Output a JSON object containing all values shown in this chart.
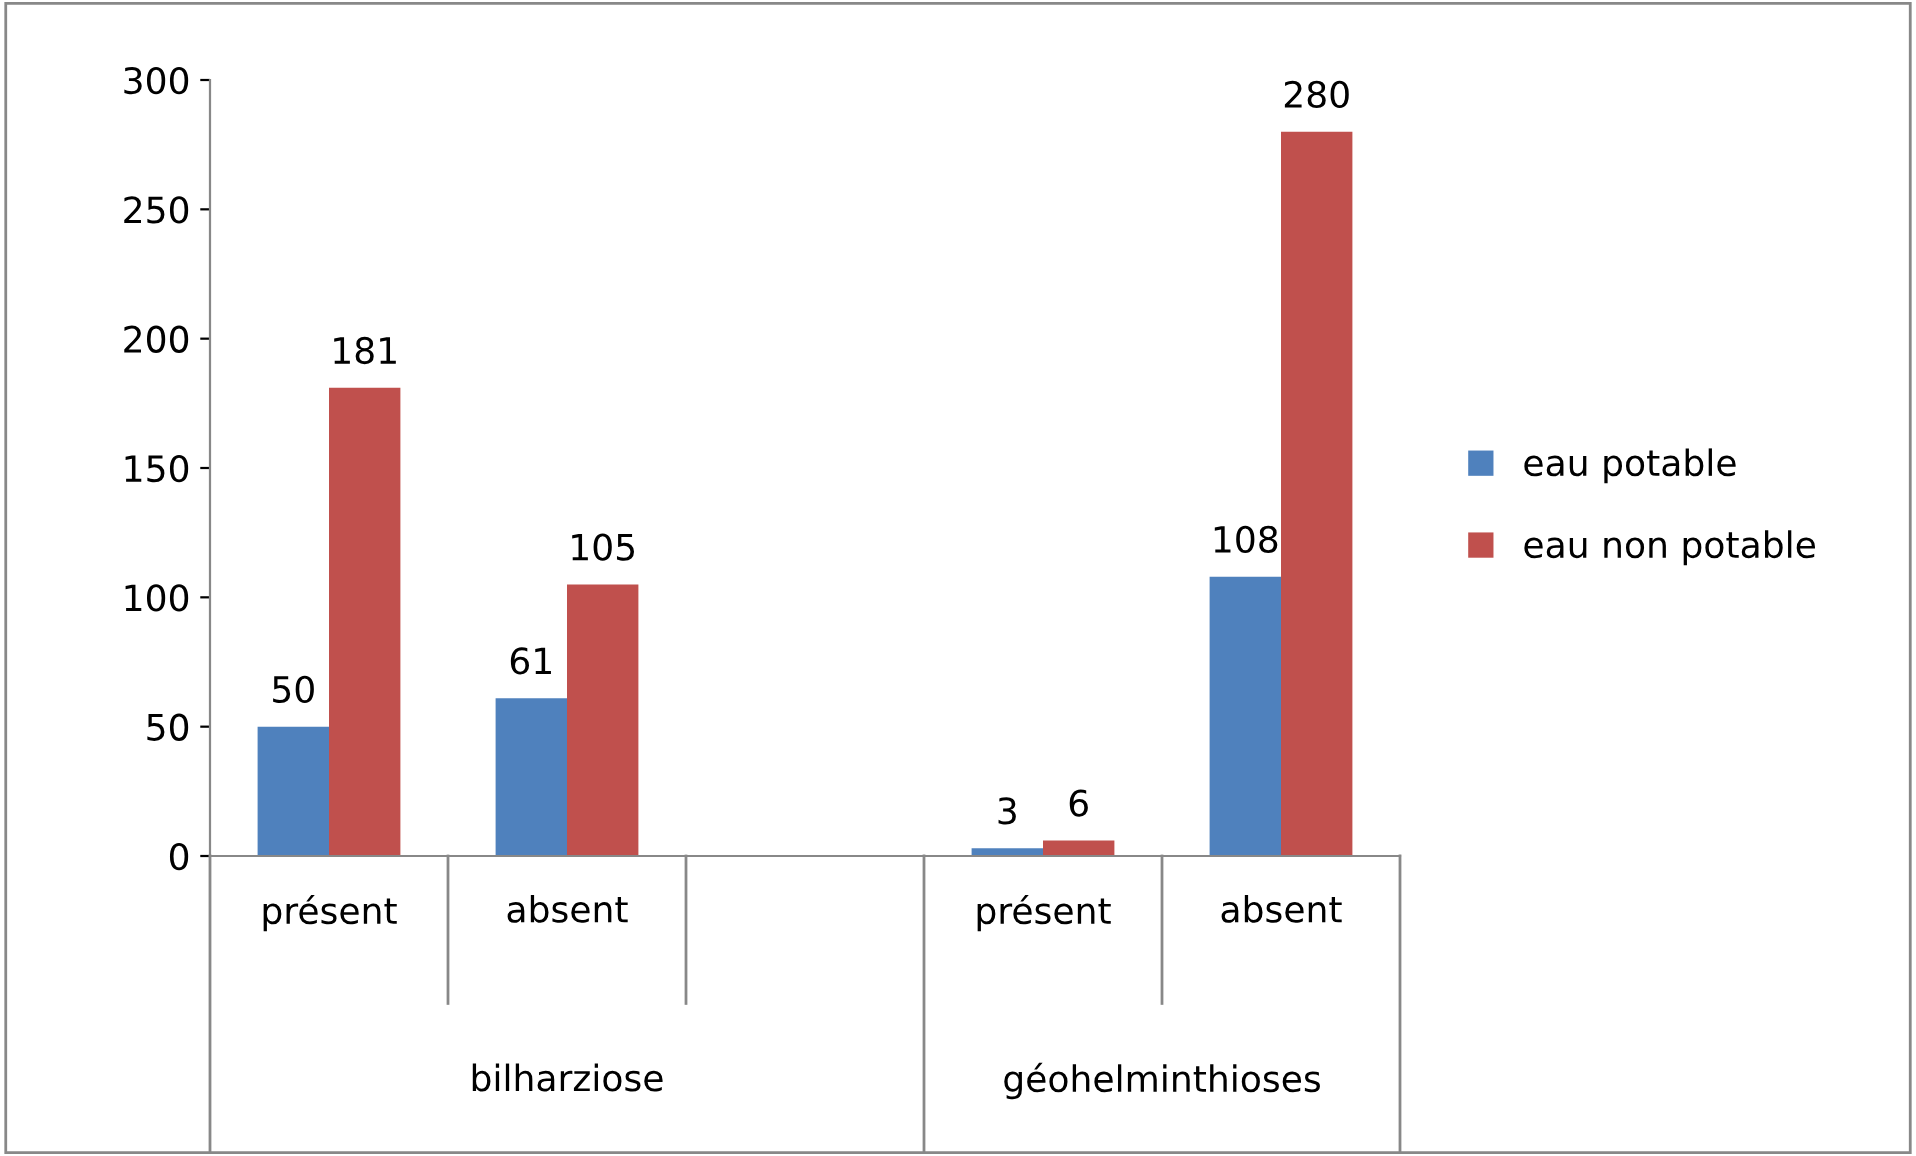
{
  "chart_data": {
    "type": "bar",
    "categories": [
      "présent",
      "absent",
      null,
      "présent",
      "absent"
    ],
    "series": [
      {
        "name": "eau potable",
        "color": "#4f81bd",
        "values": [
          50,
          61,
          null,
          3,
          108
        ]
      },
      {
        "name": "eau non potable",
        "color": "#c0504d",
        "values": [
          181,
          105,
          null,
          6,
          280
        ]
      }
    ],
    "annotations": [
      "bilharziose",
      "géohelminthioses"
    ],
    "ylim": [
      0,
      300
    ],
    "yticks": [
      0,
      50,
      100,
      150,
      200,
      250,
      300
    ],
    "data_labels": true,
    "legend": "right",
    "grid": false
  }
}
